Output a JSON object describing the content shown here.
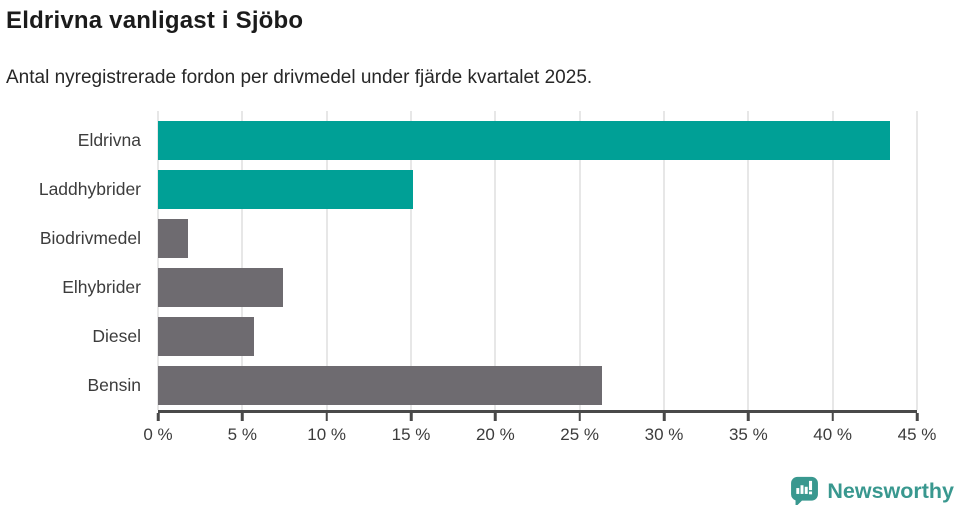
{
  "header": {
    "title": "Eldrivna vanligast i Sjöbo",
    "subtitle": "Antal nyregistrerade fordon per drivmedel under fjärde kvartalet 2025."
  },
  "chart_data": {
    "type": "bar",
    "orientation": "horizontal",
    "title": "Eldrivna vanligast i Sjöbo",
    "subtitle": "Antal nyregistrerade fordon per drivmedel under fjärde kvartalet 2025.",
    "categories": [
      "Eldrivna",
      "Laddhybrider",
      "Biodrivmedel",
      "Elhybrider",
      "Diesel",
      "Bensin"
    ],
    "values": [
      43.4,
      15.1,
      1.8,
      7.4,
      5.7,
      26.3
    ],
    "unit": "%",
    "bar_colors": [
      "#00a096",
      "#00a096",
      "#6e6b70",
      "#6e6b70",
      "#6e6b70",
      "#6e6b70"
    ],
    "xlim": [
      0,
      45
    ],
    "x_ticks": [
      0,
      5,
      10,
      15,
      20,
      25,
      30,
      35,
      40,
      45
    ],
    "x_tick_labels": [
      "0 %",
      "5 %",
      "10 %",
      "15 %",
      "20 %",
      "25 %",
      "30 %",
      "35 %",
      "40 %",
      "45 %"
    ],
    "grid": true,
    "legend": false
  },
  "branding": {
    "name": "Newsworthy",
    "icon": "newsworthy-speech-bubble-bar-chart-icon",
    "color": "#39988f"
  },
  "colors": {
    "accent_teal": "#00a096",
    "neutral_gray": "#6e6b70",
    "axis": "#494949",
    "gridline": "#e7e7e7",
    "title_text": "#1b1b1b",
    "label_text": "#3c3c3c"
  }
}
